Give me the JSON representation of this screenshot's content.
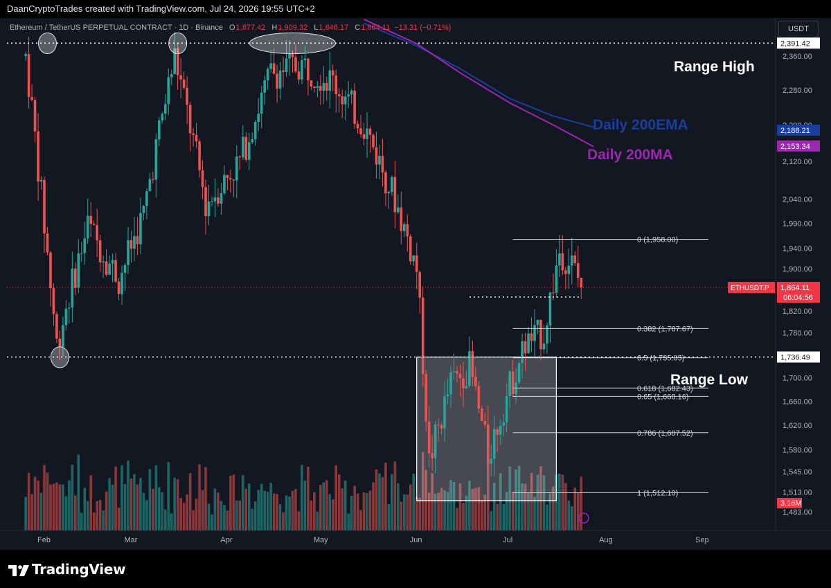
{
  "header": {
    "text": "DaanCryptoTrades created with TradingView.com, Jul 24, 2026 19:55 UTC+2"
  },
  "legend": {
    "symbol": "Ethereum / TetherUS PERPETUAL CONTRACT · 1D · Binance",
    "open_label": "O",
    "open": "1,877.42",
    "high_label": "H",
    "high": "1,909.32",
    "low_label": "L",
    "low": "1,846.17",
    "close_label": "C",
    "close": "1,864.11",
    "change": "−13.31 (−0.71%)"
  },
  "currency_button": "USDT",
  "footer": {
    "brand": "TradingView"
  },
  "colors": {
    "background": "#131722",
    "up": "#26a69a",
    "down": "#ef5350",
    "ema": "#1a3e9e",
    "ma": "#9c27b0",
    "price_tag": "#f23645",
    "box": "#ffffff"
  },
  "chart_data": {
    "type": "candlestick",
    "xlim": [
      "2026-01-15",
      "2026-09-15"
    ],
    "ylim": [
      1483,
      2400
    ],
    "y_scale": "log",
    "y_ticks": [
      "2,360.00",
      "2,280.00",
      "2,200.00",
      "2,120.00",
      "2,040.00",
      "1,990.00",
      "1,940.00",
      "1,900.00",
      "1,820.00",
      "1,780.00",
      "1,700.00",
      "1,660.00",
      "1,620.00",
      "1,580.00",
      "1,545.00",
      "1,513.00",
      "1,483.00"
    ],
    "x_ticks": [
      {
        "label": "Feb",
        "date": "2026-02-01"
      },
      {
        "label": "Mar",
        "date": "2026-03-01"
      },
      {
        "label": "Apr",
        "date": "2026-04-01"
      },
      {
        "label": "May",
        "date": "2026-05-01"
      },
      {
        "label": "Jun",
        "date": "2026-06-01"
      },
      {
        "label": "Jul",
        "date": "2026-07-01"
      },
      {
        "label": "Aug",
        "date": "2026-08-01"
      },
      {
        "label": "Sep",
        "date": "2026-09-01"
      }
    ],
    "candles_close": [
      {
        "date": "2026-01-26",
        "close": 2360
      },
      {
        "date": "2026-02-01",
        "close": 1985
      },
      {
        "date": "2026-02-05",
        "close": 1760
      },
      {
        "date": "2026-02-15",
        "close": 1985
      },
      {
        "date": "2026-02-25",
        "close": 1880
      },
      {
        "date": "2026-03-05",
        "close": 2010
      },
      {
        "date": "2026-03-15",
        "close": 2360
      },
      {
        "date": "2026-03-25",
        "close": 2030
      },
      {
        "date": "2026-04-05",
        "close": 2120
      },
      {
        "date": "2026-04-15",
        "close": 2320
      },
      {
        "date": "2026-04-25",
        "close": 2340
      },
      {
        "date": "2026-05-05",
        "close": 2300
      },
      {
        "date": "2026-05-15",
        "close": 2200
      },
      {
        "date": "2026-05-25",
        "close": 2040
      },
      {
        "date": "2026-06-01",
        "close": 1900
      },
      {
        "date": "2026-06-05",
        "close": 1560
      },
      {
        "date": "2026-06-12",
        "close": 1690
      },
      {
        "date": "2026-06-18",
        "close": 1720
      },
      {
        "date": "2026-06-24",
        "close": 1570
      },
      {
        "date": "2026-06-30",
        "close": 1670
      },
      {
        "date": "2026-07-06",
        "close": 1760
      },
      {
        "date": "2026-07-12",
        "close": 1780
      },
      {
        "date": "2026-07-17",
        "close": 1935
      },
      {
        "date": "2026-07-21",
        "close": 1910
      },
      {
        "date": "2026-07-24",
        "close": 1864.11
      }
    ],
    "levels": [
      {
        "id": "range-high",
        "price": 2391.42,
        "label": "2,391.42",
        "style": "dotted"
      },
      {
        "id": "range-low",
        "price": 1736.49,
        "label": "1,736.49",
        "style": "dotted"
      }
    ],
    "moving_averages": [
      {
        "name": "Daily 200EMA",
        "value_label": "2,188.21",
        "value": 2188.21,
        "points": [
          {
            "date": "2026-05-15",
            "y": 2440
          },
          {
            "date": "2026-06-01",
            "y": 2385
          },
          {
            "date": "2026-06-15",
            "y": 2330
          },
          {
            "date": "2026-07-01",
            "y": 2260
          },
          {
            "date": "2026-07-15",
            "y": 2220
          },
          {
            "date": "2026-07-28",
            "y": 2195
          }
        ]
      },
      {
        "name": "Daily 200MA",
        "value_label": "2,153.34",
        "value": 2153.34,
        "points": [
          {
            "date": "2026-05-15",
            "y": 2450
          },
          {
            "date": "2026-06-01",
            "y": 2390
          },
          {
            "date": "2026-06-15",
            "y": 2320
          },
          {
            "date": "2026-07-01",
            "y": 2250
          },
          {
            "date": "2026-07-15",
            "y": 2200
          },
          {
            "date": "2026-07-28",
            "y": 2152
          }
        ]
      }
    ],
    "fibonacci": [
      {
        "ratio": "0",
        "price": 1958.0,
        "label": "0 (1,958.00)"
      },
      {
        "ratio": "0.382",
        "price": 1787.67,
        "label": "0.382 (1,787.67)"
      },
      {
        "ratio": "0.5",
        "price": 1735.05,
        "label": "0.5 (1,735.05)"
      },
      {
        "ratio": "0.618",
        "price": 1682.43,
        "label": "0.618 (1,682.43)"
      },
      {
        "ratio": "0.65",
        "price": 1668.16,
        "label": "0.65 (1,668.16)"
      },
      {
        "ratio": "0.786",
        "price": 1607.52,
        "label": "0.786 (1,607.52)"
      },
      {
        "ratio": "1",
        "price": 1512.1,
        "label": "1 (1,512.10)"
      }
    ],
    "last_price": {
      "symbol": "ETHUSDT.P",
      "price": 1864.11,
      "label": "1,864.11",
      "countdown": "06:04:56"
    },
    "volume_label": "3.16M",
    "annotations": [
      "Range High",
      "Range Low",
      "Daily 200EMA",
      "Daily 200MA"
    ]
  }
}
